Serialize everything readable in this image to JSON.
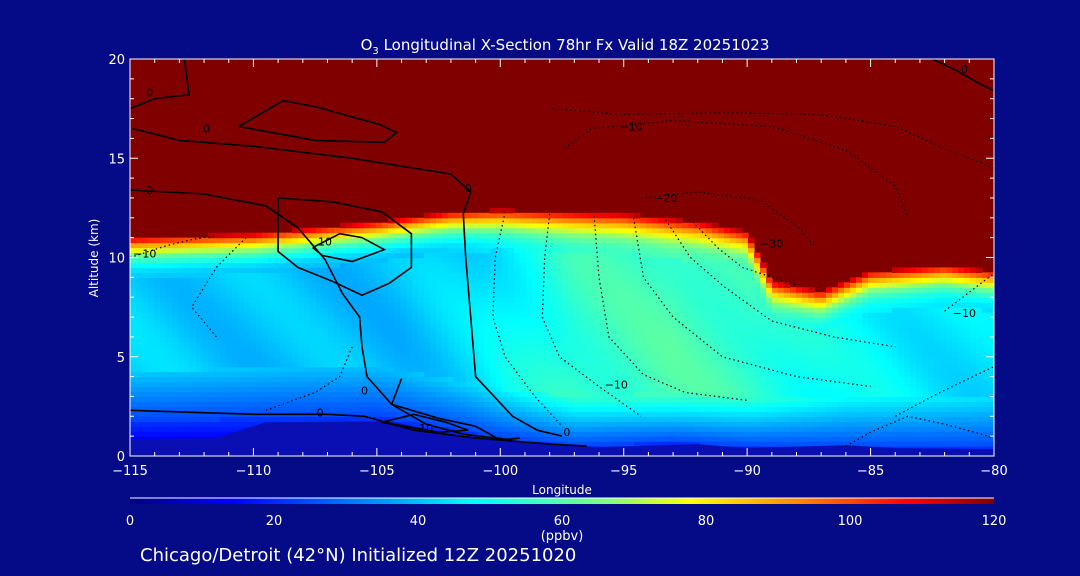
{
  "chart_data": {
    "type": "heatmap",
    "title_prefix": "O",
    "title_sub": "3",
    "title_rest": " Longitudinal X-Section 78hr  Fx Valid 18Z 20251023",
    "xlabel": "Longitude",
    "ylabel": "Altitude (km)",
    "xlim": [
      -115,
      -80
    ],
    "ylim": [
      0,
      20
    ],
    "x_ticks": [
      -115,
      -110,
      -105,
      -100,
      -95,
      -90,
      -85,
      -80
    ],
    "x_tick_labels": [
      "−115",
      "−110",
      "−105",
      "−100",
      "−95",
      "−90",
      "−85",
      "−80"
    ],
    "y_ticks": [
      0,
      5,
      10,
      15,
      20
    ],
    "y_tick_labels": [
      "0",
      "5",
      "10",
      "15",
      "20"
    ],
    "colorbar": {
      "range": [
        0,
        120
      ],
      "ticks": [
        0,
        20,
        40,
        60,
        80,
        100,
        120
      ],
      "tick_labels": [
        "0",
        "20",
        "40",
        "60",
        "80",
        "100",
        "120"
      ],
      "unit_label": "(ppbv)"
    },
    "field": {
      "description_units": "ppbv",
      "tropopause_height_km": [
        {
          "lon": -115,
          "z": 11.0
        },
        {
          "lon": -110,
          "z": 11.2
        },
        {
          "lon": -105,
          "z": 11.8
        },
        {
          "lon": -102,
          "z": 12.3
        },
        {
          "lon": -100,
          "z": 12.4
        },
        {
          "lon": -95,
          "z": 12.2
        },
        {
          "lon": -92,
          "z": 11.8
        },
        {
          "lon": -90,
          "z": 11.3
        },
        {
          "lon": -89,
          "z": 8.8
        },
        {
          "lon": -87,
          "z": 8.3
        },
        {
          "lon": -85,
          "z": 9.3
        },
        {
          "lon": -82,
          "z": 9.6
        },
        {
          "lon": -80,
          "z": 9.3
        }
      ],
      "boundary_layer_height_km": [
        {
          "lon": -115,
          "z": 1.8
        },
        {
          "lon": -110,
          "z": 1.9
        },
        {
          "lon": -105,
          "z": 2.0
        },
        {
          "lon": -102,
          "z": 1.4
        },
        {
          "lon": -100,
          "z": 0.9
        },
        {
          "lon": -97,
          "z": 0.5
        },
        {
          "lon": -93,
          "z": 0.7
        },
        {
          "lon": -90,
          "z": 0.5
        },
        {
          "lon": -85,
          "z": 0.4
        },
        {
          "lon": -80,
          "z": 0.4
        }
      ],
      "mid_troposphere_ppbv": [
        {
          "lon": -115,
          "v": 42
        },
        {
          "lon": -108,
          "v": 40
        },
        {
          "lon": -104,
          "v": 40
        },
        {
          "lon": -101,
          "v": 44
        },
        {
          "lon": -97,
          "v": 55
        },
        {
          "lon": -93,
          "v": 58
        },
        {
          "lon": -90,
          "v": 56
        },
        {
          "lon": -86,
          "v": 48
        },
        {
          "lon": -80,
          "v": 44
        }
      ]
    },
    "contour_labels": [
      {
        "text": "0",
        "lon": -114.2,
        "z": 18.3
      },
      {
        "text": "0",
        "lon": -111.9,
        "z": 16.5
      },
      {
        "text": "0",
        "lon": -114.2,
        "z": 13.4
      },
      {
        "text": "0",
        "lon": -101.3,
        "z": 13.5
      },
      {
        "text": "0",
        "lon": -105.5,
        "z": 3.3
      },
      {
        "text": "0",
        "lon": -107.3,
        "z": 2.2
      },
      {
        "text": "0",
        "lon": -97.3,
        "z": 1.2
      },
      {
        "text": "0",
        "lon": -81.2,
        "z": 19.5
      },
      {
        "text": "10",
        "lon": -107.1,
        "z": 10.8
      },
      {
        "text": "10",
        "lon": -103.0,
        "z": 1.4
      },
      {
        "text": "−10",
        "lon": -94.7,
        "z": 16.6
      },
      {
        "text": "−20",
        "lon": -93.3,
        "z": 13.0
      },
      {
        "text": "−30",
        "lon": -89.0,
        "z": 10.7
      },
      {
        "text": "−10",
        "lon": -114.4,
        "z": 10.2
      },
      {
        "text": "−10",
        "lon": -95.3,
        "z": 3.6
      },
      {
        "text": "−10",
        "lon": -81.2,
        "z": 7.2
      }
    ]
  },
  "footer": {
    "text": "Chicago/Detroit (42°N) Initialized 12Z 20251020"
  }
}
